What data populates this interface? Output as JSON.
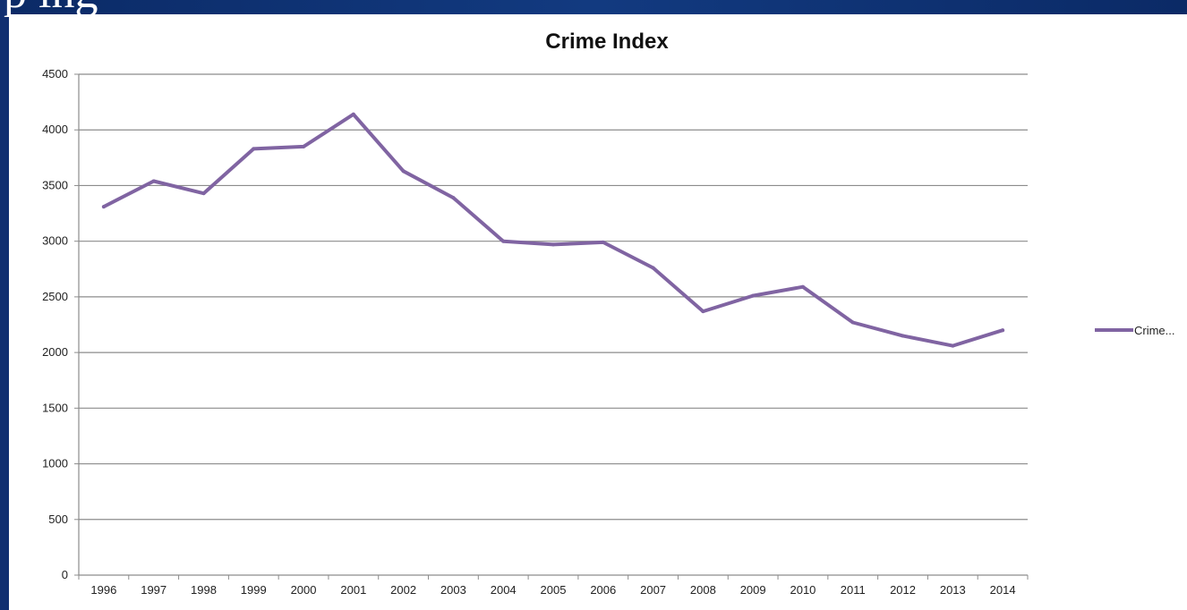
{
  "slide": {
    "title_fragment": "p   ing"
  },
  "chart_data": {
    "type": "line",
    "title": "Crime Index",
    "xlabel": "",
    "ylabel": "",
    "categories": [
      "1996",
      "1997",
      "1998",
      "1999",
      "2000",
      "2001",
      "2002",
      "2003",
      "2004",
      "2005",
      "2006",
      "2007",
      "2008",
      "2009",
      "2010",
      "2011",
      "2012",
      "2013",
      "2014"
    ],
    "series": [
      {
        "name": "Crime...",
        "color": "#8064a2",
        "values": [
          3310,
          3540,
          3430,
          3830,
          3850,
          4140,
          3630,
          3390,
          3000,
          2970,
          2990,
          2760,
          2370,
          2510,
          2590,
          2270,
          2150,
          2060,
          2200
        ]
      }
    ],
    "ylim": [
      0,
      4500
    ],
    "yticks": [
      0,
      500,
      1000,
      1500,
      2000,
      2500,
      3000,
      3500,
      4000,
      4500
    ],
    "grid": true,
    "legend_position": "right"
  }
}
